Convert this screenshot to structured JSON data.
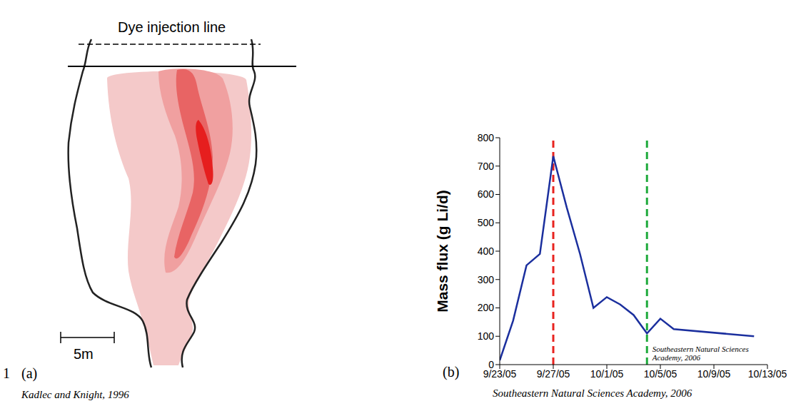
{
  "figure_number": "1",
  "diagram": {
    "letter": "(a)",
    "label": "Dye injection line",
    "scale_label": "5m",
    "source": "Kadlec and Knight, 1996"
  },
  "chart_data": {
    "type": "line",
    "letter": "(b)",
    "y_label": "Mass flux (g Li/d)",
    "annotation": "Southeastern Natural Sciences Academy, 2006",
    "source": "Southeastern Natural Sciences Academy, 2006",
    "x": [
      "2005-09-23",
      "2005-09-24",
      "2005-09-25",
      "2005-09-26",
      "2005-09-27",
      "2005-09-28",
      "2005-09-29",
      "2005-09-30",
      "2005-10-01",
      "2005-10-02",
      "2005-10-03",
      "2005-10-04",
      "2005-10-05",
      "2005-10-06",
      "2005-10-12"
    ],
    "values": [
      15,
      155,
      350,
      390,
      735,
      555,
      390,
      200,
      238,
      212,
      175,
      110,
      162,
      125,
      100
    ],
    "color": "#1b2f9e",
    "xlim": [
      "2005-09-23",
      "2005-10-13"
    ],
    "xticks": [
      {
        "value": "2005-09-23",
        "label": "9/23/05"
      },
      {
        "value": "2005-09-27",
        "label": "9/27/05"
      },
      {
        "value": "2005-10-01",
        "label": "10/1/05"
      },
      {
        "value": "2005-10-05",
        "label": "10/5/05"
      },
      {
        "value": "2005-10-09",
        "label": "10/9/05"
      },
      {
        "value": "2005-10-13",
        "label": "10/13/05"
      }
    ],
    "ylim": [
      0,
      800
    ],
    "yticks": [
      0,
      100,
      200,
      300,
      400,
      500,
      600,
      700,
      800
    ],
    "reference_lines": [
      {
        "x": "2005-09-27",
        "color": "#e8231f",
        "line_style": "dashed"
      },
      {
        "x": "2005-10-04",
        "color": "#1faa3c",
        "line_style": "dashed"
      }
    ],
    "grid": false
  }
}
